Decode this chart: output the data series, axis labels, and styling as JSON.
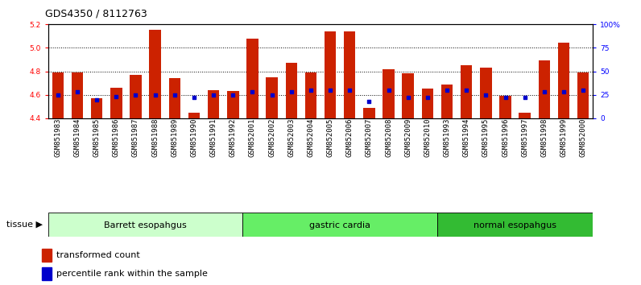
{
  "title": "GDS4350 / 8112763",
  "samples": [
    "GSM851983",
    "GSM851984",
    "GSM851985",
    "GSM851986",
    "GSM851987",
    "GSM851988",
    "GSM851989",
    "GSM851990",
    "GSM851991",
    "GSM851992",
    "GSM852001",
    "GSM852002",
    "GSM852003",
    "GSM852004",
    "GSM852005",
    "GSM852006",
    "GSM852007",
    "GSM852008",
    "GSM852009",
    "GSM852010",
    "GSM851993",
    "GSM851994",
    "GSM851995",
    "GSM851996",
    "GSM851997",
    "GSM851998",
    "GSM851999",
    "GSM852000"
  ],
  "red_values": [
    4.79,
    4.79,
    4.57,
    4.66,
    4.77,
    5.15,
    4.74,
    4.45,
    4.64,
    4.63,
    5.08,
    4.75,
    4.87,
    4.79,
    5.14,
    5.14,
    4.49,
    4.82,
    4.78,
    4.65,
    4.69,
    4.85,
    4.83,
    4.59,
    4.45,
    4.89,
    5.04,
    4.79
  ],
  "blue_values": [
    25,
    28,
    20,
    23,
    25,
    25,
    25,
    22,
    25,
    25,
    28,
    25,
    28,
    30,
    30,
    30,
    18,
    30,
    22,
    22,
    30,
    30,
    25,
    22,
    22,
    28,
    28,
    30
  ],
  "groups": [
    {
      "label": "Barrett esopahgus",
      "start": 0,
      "end": 10,
      "color": "#ccffcc"
    },
    {
      "label": "gastric cardia",
      "start": 10,
      "end": 20,
      "color": "#66ee66"
    },
    {
      "label": "normal esopahgus",
      "start": 20,
      "end": 28,
      "color": "#33bb33"
    }
  ],
  "ylim_left": [
    4.4,
    5.2
  ],
  "ylim_right": [
    0,
    100
  ],
  "yticks_left": [
    4.4,
    4.6,
    4.8,
    5.0,
    5.2
  ],
  "yticks_right": [
    0,
    25,
    50,
    75,
    100
  ],
  "ytick_labels_right": [
    "0",
    "25",
    "50",
    "75",
    "100%"
  ],
  "grid_yticks": [
    4.6,
    4.8,
    5.0
  ],
  "bar_color": "#cc2200",
  "dot_color": "#0000cc",
  "bg_color": "#ffffff",
  "title_fontsize": 9,
  "tick_fontsize": 6.5,
  "group_fontsize": 8,
  "legend_fontsize": 8
}
